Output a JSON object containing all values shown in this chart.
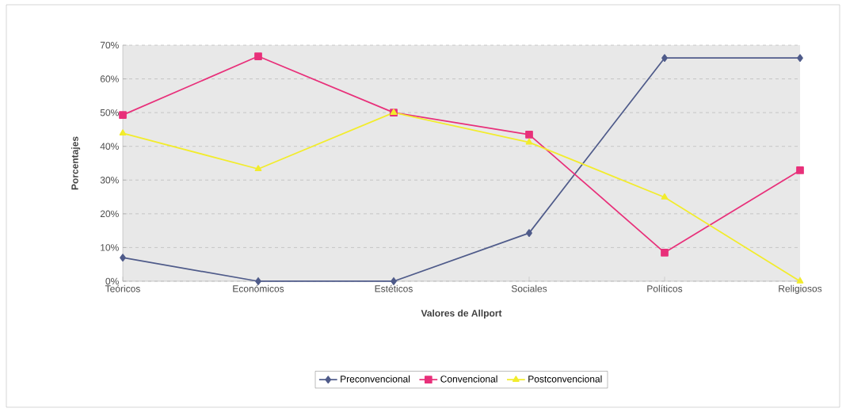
{
  "chart_data": {
    "type": "line",
    "xlabel": "Valores de Allport",
    "ylabel": "Porcentajes",
    "categories": [
      "Teóricos",
      "Económicos",
      "Estéticos",
      "Sociales",
      "Políticos",
      "Religiosos"
    ],
    "series": [
      {
        "name": "Preconvencional",
        "color": "#4f5b8a",
        "marker": "diamond",
        "values": [
          7,
          0,
          0,
          14.3,
          66.2,
          66.2
        ]
      },
      {
        "name": "Convencional",
        "color": "#e8307a",
        "marker": "square",
        "values": [
          49.3,
          66.7,
          50,
          43.5,
          8.5,
          32.9
        ]
      },
      {
        "name": "Postconvencional",
        "color": "#f2ec2c",
        "marker": "triangle",
        "values": [
          43.9,
          33.3,
          50,
          41.2,
          24.9,
          0
        ]
      }
    ],
    "ylim": [
      0,
      70
    ],
    "yticks": [
      {
        "value": 0,
        "label": "0%"
      },
      {
        "value": 10,
        "label": "10%"
      },
      {
        "value": 20,
        "label": "20%"
      },
      {
        "value": 30,
        "label": "30%"
      },
      {
        "value": 40,
        "label": "40%"
      },
      {
        "value": 50,
        "label": "50%"
      },
      {
        "value": 60,
        "label": "60%"
      },
      {
        "value": 70,
        "label": "70%"
      }
    ],
    "grid": "y",
    "legend": "bottom",
    "line_style": "solid"
  }
}
